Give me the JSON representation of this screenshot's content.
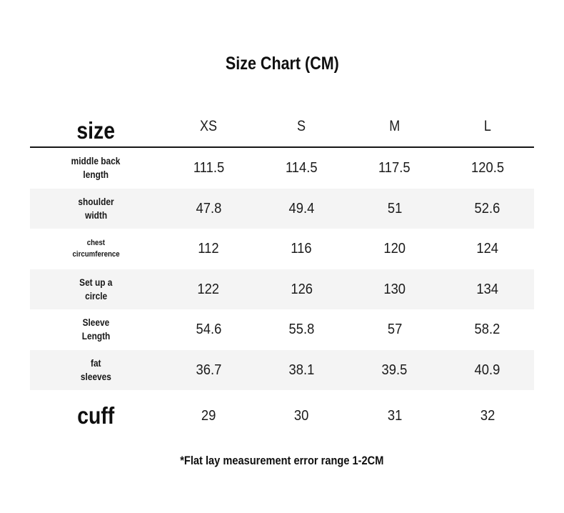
{
  "page": {
    "title": "Size Chart (CM)",
    "footnote": "*Flat lay measurement error range 1-2CM"
  },
  "table": {
    "corner_label": "size",
    "columns": [
      "XS",
      "S",
      "M",
      "L"
    ],
    "rows": [
      {
        "label_lines": [
          "middle back",
          "length"
        ],
        "values": [
          "111.5",
          "114.5",
          "117.5",
          "120.5"
        ]
      },
      {
        "label_lines": [
          "shoulder",
          "width"
        ],
        "values": [
          "47.8",
          "49.4",
          "51",
          "52.6"
        ]
      },
      {
        "label_lines": [
          "chest",
          "circumference"
        ],
        "values": [
          "112",
          "116",
          "120",
          "124"
        ]
      },
      {
        "label_lines": [
          "Set up a",
          "circle"
        ],
        "values": [
          "122",
          "126",
          "130",
          "134"
        ]
      },
      {
        "label_lines": [
          "Sleeve",
          "Length"
        ],
        "values": [
          "54.6",
          "55.8",
          "57",
          "58.2"
        ]
      },
      {
        "label_lines": [
          "fat",
          "sleeves"
        ],
        "values": [
          "36.7",
          "38.1",
          "39.5",
          "40.9"
        ]
      }
    ],
    "cuff_row": {
      "label": "cuff",
      "values": [
        "29",
        "30",
        "31",
        "32"
      ]
    }
  },
  "colors": {
    "stripe": "#f4f4f4",
    "text": "#1c1c1c",
    "rule": "#161616",
    "background": "#ffffff"
  },
  "chart_data": {
    "type": "table",
    "title": "Size Chart (CM)",
    "columns": [
      "size",
      "XS",
      "S",
      "M",
      "L"
    ],
    "rows": [
      [
        "middle back length",
        111.5,
        114.5,
        117.5,
        120.5
      ],
      [
        "shoulder width",
        47.8,
        49.4,
        51,
        52.6
      ],
      [
        "chest circumference",
        112,
        116,
        120,
        124
      ],
      [
        "Set up a circle",
        122,
        126,
        130,
        134
      ],
      [
        "Sleeve Length",
        54.6,
        55.8,
        57,
        58.2
      ],
      [
        "fat sleeves",
        36.7,
        38.1,
        39.5,
        40.9
      ],
      [
        "cuff",
        29,
        30,
        31,
        32
      ]
    ],
    "footnote": "*Flat lay measurement error range 1-2CM",
    "layout": {
      "striped_rows": [
        1,
        3,
        5
      ],
      "grid": "horizontal-stripes-only",
      "units": "CM"
    }
  }
}
